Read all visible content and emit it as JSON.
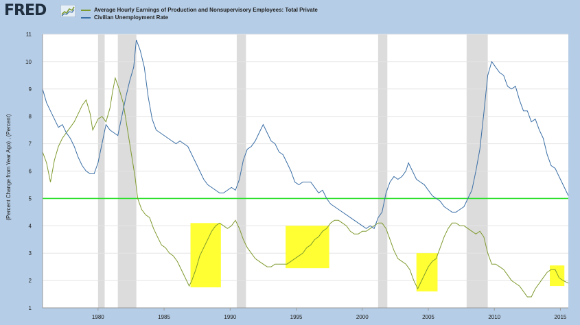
{
  "header": {
    "logo_text": "FRED",
    "logo_icon": "chart-line-icon"
  },
  "colors": {
    "earnings": "#7e9a2e",
    "unemployment": "#3a6ea5",
    "recession": "#dcdcdc",
    "highlight": "#ffff33",
    "reference_line": "#2ee02e",
    "page_background": "#b5cde6",
    "plot_background": "#ffffff"
  },
  "chart_data": {
    "type": "line",
    "title": "",
    "ylabel": "(Percent Change from Year Ago) , (Percent)",
    "xlabel": "",
    "xlim": [
      1975.8,
      2015.6
    ],
    "ylim": [
      1,
      11
    ],
    "x_ticks": [
      "1980",
      "1985",
      "1990",
      "1995",
      "2000",
      "2005",
      "2010",
      "2015"
    ],
    "y_ticks": [
      "1",
      "2",
      "3",
      "4",
      "5",
      "6",
      "7",
      "8",
      "9",
      "10",
      "11"
    ],
    "grid": true,
    "legend": "top-left",
    "reference_line": 5,
    "recessions": [
      [
        1980.0,
        1980.5
      ],
      [
        1981.5,
        1982.9
      ],
      [
        1990.5,
        1991.2
      ],
      [
        2001.2,
        2001.9
      ],
      [
        2007.9,
        2009.5
      ]
    ],
    "highlights": [
      {
        "x": [
          1987.0,
          1989.3
        ],
        "y": [
          1.75,
          4.1
        ]
      },
      {
        "x": [
          1994.2,
          1997.5
        ],
        "y": [
          2.45,
          4.0
        ]
      },
      {
        "x": [
          2004.1,
          2005.7
        ],
        "y": [
          1.6,
          3.0
        ]
      },
      {
        "x": [
          2014.2,
          2015.3
        ],
        "y": [
          1.8,
          2.55
        ]
      }
    ],
    "series": [
      {
        "name": "Average Hourly Earnings of Production and Nonsupervisory Employees: Total Private",
        "points": [
          [
            1975.8,
            6.7
          ],
          [
            1976.1,
            6.3
          ],
          [
            1976.4,
            5.6
          ],
          [
            1976.7,
            6.4
          ],
          [
            1977.0,
            6.9
          ],
          [
            1977.3,
            7.2
          ],
          [
            1977.6,
            7.4
          ],
          [
            1977.9,
            7.6
          ],
          [
            1978.2,
            7.8
          ],
          [
            1978.5,
            8.1
          ],
          [
            1978.8,
            8.4
          ],
          [
            1979.1,
            8.6
          ],
          [
            1979.4,
            8.1
          ],
          [
            1979.6,
            7.5
          ],
          [
            1979.8,
            7.7
          ],
          [
            1980.0,
            7.9
          ],
          [
            1980.3,
            8.0
          ],
          [
            1980.6,
            7.8
          ],
          [
            1980.9,
            8.3
          ],
          [
            1981.1,
            8.9
          ],
          [
            1981.3,
            9.4
          ],
          [
            1981.6,
            9.0
          ],
          [
            1981.9,
            8.5
          ],
          [
            1982.2,
            7.6
          ],
          [
            1982.5,
            6.7
          ],
          [
            1982.8,
            5.8
          ],
          [
            1983.0,
            5.0
          ],
          [
            1983.3,
            4.6
          ],
          [
            1983.6,
            4.4
          ],
          [
            1983.9,
            4.3
          ],
          [
            1984.2,
            3.9
          ],
          [
            1984.5,
            3.6
          ],
          [
            1984.8,
            3.3
          ],
          [
            1985.1,
            3.2
          ],
          [
            1985.4,
            3.0
          ],
          [
            1985.7,
            2.9
          ],
          [
            1986.0,
            2.7
          ],
          [
            1986.3,
            2.4
          ],
          [
            1986.6,
            2.1
          ],
          [
            1986.9,
            1.8
          ],
          [
            1987.1,
            2.0
          ],
          [
            1987.4,
            2.4
          ],
          [
            1987.7,
            2.9
          ],
          [
            1988.0,
            3.2
          ],
          [
            1988.3,
            3.5
          ],
          [
            1988.6,
            3.8
          ],
          [
            1988.9,
            4.0
          ],
          [
            1989.2,
            4.1
          ],
          [
            1989.5,
            4.0
          ],
          [
            1989.8,
            3.9
          ],
          [
            1990.1,
            4.0
          ],
          [
            1990.4,
            4.2
          ],
          [
            1990.7,
            3.9
          ],
          [
            1991.0,
            3.5
          ],
          [
            1991.3,
            3.2
          ],
          [
            1991.6,
            3.0
          ],
          [
            1991.9,
            2.8
          ],
          [
            1992.2,
            2.7
          ],
          [
            1992.5,
            2.6
          ],
          [
            1992.8,
            2.5
          ],
          [
            1993.1,
            2.5
          ],
          [
            1993.4,
            2.6
          ],
          [
            1993.7,
            2.6
          ],
          [
            1994.0,
            2.6
          ],
          [
            1994.3,
            2.6
          ],
          [
            1994.6,
            2.7
          ],
          [
            1994.9,
            2.8
          ],
          [
            1995.2,
            2.9
          ],
          [
            1995.5,
            3.0
          ],
          [
            1995.8,
            3.2
          ],
          [
            1996.1,
            3.3
          ],
          [
            1996.4,
            3.5
          ],
          [
            1996.7,
            3.6
          ],
          [
            1997.0,
            3.8
          ],
          [
            1997.3,
            3.9
          ],
          [
            1997.6,
            4.1
          ],
          [
            1997.9,
            4.2
          ],
          [
            1998.2,
            4.2
          ],
          [
            1998.5,
            4.1
          ],
          [
            1998.8,
            4.0
          ],
          [
            1999.1,
            3.8
          ],
          [
            1999.4,
            3.7
          ],
          [
            1999.7,
            3.7
          ],
          [
            2000.0,
            3.8
          ],
          [
            2000.3,
            3.8
          ],
          [
            2000.6,
            3.9
          ],
          [
            2000.9,
            4.0
          ],
          [
            2001.2,
            4.1
          ],
          [
            2001.5,
            4.1
          ],
          [
            2001.8,
            3.9
          ],
          [
            2002.1,
            3.5
          ],
          [
            2002.4,
            3.1
          ],
          [
            2002.7,
            2.8
          ],
          [
            2003.0,
            2.7
          ],
          [
            2003.3,
            2.6
          ],
          [
            2003.6,
            2.4
          ],
          [
            2003.9,
            2.0
          ],
          [
            2004.2,
            1.7
          ],
          [
            2004.4,
            1.9
          ],
          [
            2004.7,
            2.2
          ],
          [
            2005.0,
            2.5
          ],
          [
            2005.3,
            2.7
          ],
          [
            2005.6,
            2.8
          ],
          [
            2005.9,
            3.2
          ],
          [
            2006.2,
            3.6
          ],
          [
            2006.5,
            3.9
          ],
          [
            2006.8,
            4.1
          ],
          [
            2007.1,
            4.1
          ],
          [
            2007.4,
            4.0
          ],
          [
            2007.7,
            4.0
          ],
          [
            2008.0,
            3.9
          ],
          [
            2008.3,
            3.8
          ],
          [
            2008.6,
            3.7
          ],
          [
            2008.9,
            3.8
          ],
          [
            2009.2,
            3.6
          ],
          [
            2009.5,
            3.0
          ],
          [
            2009.8,
            2.6
          ],
          [
            2010.1,
            2.6
          ],
          [
            2010.4,
            2.5
          ],
          [
            2010.7,
            2.4
          ],
          [
            2011.0,
            2.2
          ],
          [
            2011.3,
            2.0
          ],
          [
            2011.6,
            1.9
          ],
          [
            2011.9,
            1.8
          ],
          [
            2012.2,
            1.6
          ],
          [
            2012.5,
            1.4
          ],
          [
            2012.8,
            1.4
          ],
          [
            2013.1,
            1.7
          ],
          [
            2013.4,
            1.9
          ],
          [
            2013.7,
            2.1
          ],
          [
            2014.0,
            2.3
          ],
          [
            2014.3,
            2.4
          ],
          [
            2014.6,
            2.4
          ],
          [
            2014.9,
            2.1
          ],
          [
            2015.2,
            2.0
          ],
          [
            2015.6,
            1.9
          ]
        ]
      },
      {
        "name": "Civilian Unemployment Rate",
        "points": [
          [
            1975.8,
            9.0
          ],
          [
            1976.1,
            8.5
          ],
          [
            1976.4,
            8.2
          ],
          [
            1976.7,
            7.9
          ],
          [
            1977.0,
            7.6
          ],
          [
            1977.3,
            7.7
          ],
          [
            1977.6,
            7.4
          ],
          [
            1977.9,
            7.2
          ],
          [
            1978.2,
            6.9
          ],
          [
            1978.5,
            6.5
          ],
          [
            1978.8,
            6.2
          ],
          [
            1979.1,
            6.0
          ],
          [
            1979.4,
            5.9
          ],
          [
            1979.7,
            5.9
          ],
          [
            1980.0,
            6.3
          ],
          [
            1980.3,
            7.0
          ],
          [
            1980.6,
            7.7
          ],
          [
            1980.9,
            7.5
          ],
          [
            1981.2,
            7.4
          ],
          [
            1981.5,
            7.3
          ],
          [
            1981.8,
            8.0
          ],
          [
            1982.1,
            8.7
          ],
          [
            1982.4,
            9.3
          ],
          [
            1982.7,
            9.8
          ],
          [
            1982.9,
            10.8
          ],
          [
            1983.2,
            10.4
          ],
          [
            1983.5,
            9.8
          ],
          [
            1983.8,
            8.7
          ],
          [
            1984.1,
            7.9
          ],
          [
            1984.4,
            7.5
          ],
          [
            1984.7,
            7.4
          ],
          [
            1985.0,
            7.3
          ],
          [
            1985.3,
            7.2
          ],
          [
            1985.6,
            7.1
          ],
          [
            1985.9,
            7.0
          ],
          [
            1986.2,
            7.1
          ],
          [
            1986.5,
            7.0
          ],
          [
            1986.8,
            6.9
          ],
          [
            1987.1,
            6.6
          ],
          [
            1987.4,
            6.3
          ],
          [
            1987.7,
            6.0
          ],
          [
            1988.0,
            5.7
          ],
          [
            1988.3,
            5.5
          ],
          [
            1988.6,
            5.4
          ],
          [
            1988.9,
            5.3
          ],
          [
            1989.2,
            5.2
          ],
          [
            1989.5,
            5.2
          ],
          [
            1989.8,
            5.3
          ],
          [
            1990.1,
            5.4
          ],
          [
            1990.4,
            5.3
          ],
          [
            1990.7,
            5.7
          ],
          [
            1991.0,
            6.4
          ],
          [
            1991.3,
            6.8
          ],
          [
            1991.6,
            6.9
          ],
          [
            1991.9,
            7.1
          ],
          [
            1992.2,
            7.4
          ],
          [
            1992.5,
            7.7
          ],
          [
            1992.8,
            7.4
          ],
          [
            1993.1,
            7.1
          ],
          [
            1993.4,
            7.0
          ],
          [
            1993.7,
            6.7
          ],
          [
            1994.0,
            6.6
          ],
          [
            1994.3,
            6.3
          ],
          [
            1994.6,
            6.0
          ],
          [
            1994.9,
            5.6
          ],
          [
            1995.2,
            5.5
          ],
          [
            1995.5,
            5.6
          ],
          [
            1995.8,
            5.6
          ],
          [
            1996.1,
            5.6
          ],
          [
            1996.4,
            5.4
          ],
          [
            1996.7,
            5.2
          ],
          [
            1997.0,
            5.3
          ],
          [
            1997.3,
            5.0
          ],
          [
            1997.6,
            4.8
          ],
          [
            1997.9,
            4.7
          ],
          [
            1998.2,
            4.6
          ],
          [
            1998.5,
            4.5
          ],
          [
            1998.8,
            4.4
          ],
          [
            1999.1,
            4.3
          ],
          [
            1999.4,
            4.2
          ],
          [
            1999.7,
            4.1
          ],
          [
            2000.0,
            4.0
          ],
          [
            2000.3,
            3.9
          ],
          [
            2000.6,
            4.0
          ],
          [
            2000.9,
            3.9
          ],
          [
            2001.2,
            4.3
          ],
          [
            2001.5,
            4.5
          ],
          [
            2001.8,
            5.2
          ],
          [
            2002.1,
            5.6
          ],
          [
            2002.4,
            5.8
          ],
          [
            2002.7,
            5.7
          ],
          [
            2003.0,
            5.8
          ],
          [
            2003.3,
            6.0
          ],
          [
            2003.5,
            6.3
          ],
          [
            2003.8,
            6.0
          ],
          [
            2004.1,
            5.7
          ],
          [
            2004.4,
            5.6
          ],
          [
            2004.7,
            5.5
          ],
          [
            2005.0,
            5.3
          ],
          [
            2005.3,
            5.1
          ],
          [
            2005.6,
            5.0
          ],
          [
            2005.9,
            4.9
          ],
          [
            2006.2,
            4.7
          ],
          [
            2006.5,
            4.6
          ],
          [
            2006.8,
            4.5
          ],
          [
            2007.1,
            4.5
          ],
          [
            2007.4,
            4.6
          ],
          [
            2007.7,
            4.7
          ],
          [
            2008.0,
            5.0
          ],
          [
            2008.3,
            5.3
          ],
          [
            2008.6,
            6.0
          ],
          [
            2008.9,
            6.8
          ],
          [
            2009.2,
            8.1
          ],
          [
            2009.5,
            9.5
          ],
          [
            2009.8,
            10.0
          ],
          [
            2010.1,
            9.8
          ],
          [
            2010.4,
            9.6
          ],
          [
            2010.7,
            9.5
          ],
          [
            2011.0,
            9.1
          ],
          [
            2011.3,
            9.0
          ],
          [
            2011.6,
            9.1
          ],
          [
            2011.9,
            8.6
          ],
          [
            2012.2,
            8.2
          ],
          [
            2012.5,
            8.2
          ],
          [
            2012.8,
            7.8
          ],
          [
            2013.1,
            7.9
          ],
          [
            2013.4,
            7.5
          ],
          [
            2013.7,
            7.2
          ],
          [
            2014.0,
            6.6
          ],
          [
            2014.3,
            6.2
          ],
          [
            2014.6,
            6.1
          ],
          [
            2014.9,
            5.8
          ],
          [
            2015.2,
            5.5
          ],
          [
            2015.6,
            5.1
          ]
        ]
      }
    ]
  }
}
